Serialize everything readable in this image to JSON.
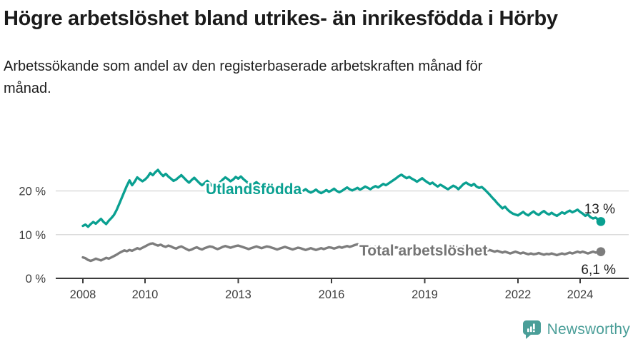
{
  "page": {
    "title": "Högre arbetslöshet bland utrikes- än inrikesfödda i Hörby",
    "subtitle": "Arbetssökande som andel av den registerbaserade arbetskraften månad för månad."
  },
  "footer": {
    "brand": "Newsworthy",
    "icon": "bar-chart-speech-bubble-icon"
  },
  "colors": {
    "foreign_born_teal": "#0aa091",
    "total_gray": "#7d7d7d",
    "series_label_gray": "#757575",
    "value_label": "#1f1f1f",
    "axis": "#3c3c3c",
    "tick_text": "#3d3d3d",
    "grid": "#dcdcdc",
    "brand_teal": "#4a9e98",
    "background": "#ffffff"
  },
  "chart_data": {
    "type": "line",
    "x_unit": "month",
    "x_start": "2008-01",
    "x_end": "2024-09",
    "grid": "horizontal",
    "ylim": [
      0,
      26
    ],
    "x_ticks": [
      {
        "label": "2008",
        "year": 2008
      },
      {
        "label": "2010",
        "year": 2010
      },
      {
        "label": "2013",
        "year": 2013
      },
      {
        "label": "2016",
        "year": 2016
      },
      {
        "label": "2019",
        "year": 2019
      },
      {
        "label": "2022",
        "year": 2022
      },
      {
        "label": "2024",
        "year": 2024
      }
    ],
    "y_ticks": [
      {
        "label": "0 %",
        "value": 0
      },
      {
        "label": "10 %",
        "value": 10
      },
      {
        "label": "20 %",
        "value": 20
      }
    ],
    "series": [
      {
        "id": "utlandsfodda",
        "name": "Utlandsfödda",
        "color": "#0aa091",
        "end_value": 13.0,
        "end_label": "13 %",
        "values": [
          12.0,
          12.3,
          11.8,
          12.4,
          12.9,
          12.5,
          13.1,
          13.6,
          12.9,
          12.4,
          13.2,
          13.8,
          14.5,
          15.6,
          17.0,
          18.4,
          19.8,
          21.2,
          22.4,
          21.3,
          22.1,
          23.1,
          22.6,
          22.2,
          22.6,
          23.2,
          24.1,
          23.6,
          24.3,
          24.8,
          24.0,
          23.4,
          23.9,
          23.3,
          22.8,
          22.3,
          22.6,
          23.1,
          23.6,
          23.0,
          22.4,
          21.9,
          22.5,
          23.0,
          22.4,
          21.8,
          21.3,
          21.8,
          22.3,
          21.7,
          21.1,
          20.8,
          21.4,
          22.0,
          22.6,
          23.1,
          22.7,
          22.2,
          22.6,
          23.2,
          22.8,
          23.3,
          22.7,
          22.2,
          21.7,
          21.2,
          21.6,
          22.0,
          21.5,
          21.0,
          20.6,
          20.9,
          21.3,
          21.0,
          20.6,
          20.2,
          20.5,
          20.9,
          20.4,
          20.0,
          19.7,
          20.1,
          20.4,
          20.0,
          19.7,
          20.0,
          20.4,
          19.9,
          19.6,
          19.9,
          20.3,
          19.8,
          19.5,
          19.8,
          20.2,
          19.8,
          20.1,
          20.5,
          20.0,
          19.7,
          20.0,
          20.4,
          20.8,
          20.4,
          20.1,
          20.4,
          20.7,
          20.3,
          20.6,
          21.0,
          20.7,
          20.4,
          20.8,
          21.1,
          20.8,
          21.2,
          21.6,
          21.3,
          21.7,
          22.1,
          22.5,
          22.9,
          23.4,
          23.7,
          23.3,
          22.9,
          23.2,
          22.8,
          22.5,
          22.1,
          22.5,
          22.9,
          22.4,
          22.0,
          21.6,
          21.9,
          21.4,
          21.0,
          21.4,
          21.1,
          20.7,
          20.4,
          20.8,
          21.2,
          20.9,
          20.4,
          21.0,
          21.6,
          21.9,
          21.5,
          21.2,
          21.6,
          21.0,
          20.7,
          20.9,
          20.4,
          19.8,
          19.2,
          18.5,
          17.9,
          17.2,
          16.6,
          16.0,
          16.4,
          15.7,
          15.2,
          14.8,
          14.6,
          14.4,
          14.8,
          15.2,
          14.7,
          14.4,
          14.9,
          15.3,
          14.8,
          14.5,
          15.0,
          15.4,
          14.9,
          14.6,
          15.0,
          14.6,
          14.3,
          14.7,
          15.1,
          14.8,
          15.2,
          15.5,
          15.1,
          15.4,
          15.7,
          15.2,
          14.8,
          14.3,
          14.6,
          14.0,
          13.7,
          13.9,
          13.4,
          13.0
        ]
      },
      {
        "id": "total",
        "name": "Total arbetslöshet",
        "color": "#7d7d7d",
        "end_value": 6.1,
        "end_label": "6,1 %",
        "values": [
          4.8,
          4.6,
          4.2,
          4.0,
          4.2,
          4.5,
          4.3,
          4.1,
          4.4,
          4.7,
          4.5,
          4.8,
          5.1,
          5.4,
          5.8,
          6.1,
          6.4,
          6.2,
          6.5,
          6.3,
          6.6,
          6.9,
          6.7,
          7.0,
          7.3,
          7.6,
          7.9,
          8.0,
          7.7,
          7.5,
          7.7,
          7.4,
          7.2,
          7.5,
          7.3,
          7.0,
          6.8,
          7.1,
          7.3,
          7.0,
          6.7,
          6.4,
          6.6,
          6.9,
          7.1,
          6.8,
          6.6,
          6.9,
          7.1,
          7.3,
          7.2,
          6.9,
          6.7,
          6.9,
          7.2,
          7.4,
          7.2,
          7.0,
          7.2,
          7.4,
          7.5,
          7.3,
          7.1,
          6.9,
          6.7,
          6.9,
          7.1,
          7.3,
          7.1,
          6.9,
          7.1,
          7.3,
          7.2,
          7.0,
          6.8,
          6.6,
          6.8,
          7.0,
          7.2,
          7.0,
          6.8,
          6.6,
          6.8,
          7.0,
          6.9,
          6.7,
          6.5,
          6.7,
          6.9,
          6.7,
          6.5,
          6.7,
          6.9,
          6.7,
          6.9,
          7.1,
          7.0,
          6.8,
          7.0,
          7.2,
          7.0,
          7.2,
          7.4,
          7.2,
          7.4,
          7.6,
          7.8,
          7.6,
          7.4,
          7.2,
          7.4,
          7.2,
          7.0,
          7.2,
          7.0,
          6.8,
          7.0,
          7.2,
          7.0,
          6.8,
          6.9,
          7.1,
          6.9,
          6.7,
          6.9,
          6.7,
          6.5,
          6.7,
          6.9,
          6.7,
          6.5,
          6.7,
          6.8,
          6.6,
          6.4,
          6.6,
          6.8,
          6.6,
          6.4,
          6.6,
          6.8,
          6.6,
          6.8,
          7.0,
          7.1,
          6.9,
          7.1,
          7.3,
          7.1,
          6.9,
          7.1,
          6.9,
          6.7,
          6.5,
          6.7,
          6.5,
          6.3,
          6.5,
          6.3,
          6.1,
          6.3,
          6.1,
          5.9,
          6.1,
          5.9,
          5.7,
          5.9,
          6.1,
          5.9,
          5.7,
          5.9,
          5.7,
          5.5,
          5.7,
          5.5,
          5.6,
          5.8,
          5.6,
          5.4,
          5.6,
          5.5,
          5.7,
          5.5,
          5.3,
          5.5,
          5.7,
          5.5,
          5.7,
          5.9,
          5.7,
          5.9,
          6.1,
          5.9,
          6.1,
          5.9,
          5.7,
          5.9,
          6.1,
          5.9,
          6.0,
          6.1
        ]
      }
    ]
  }
}
